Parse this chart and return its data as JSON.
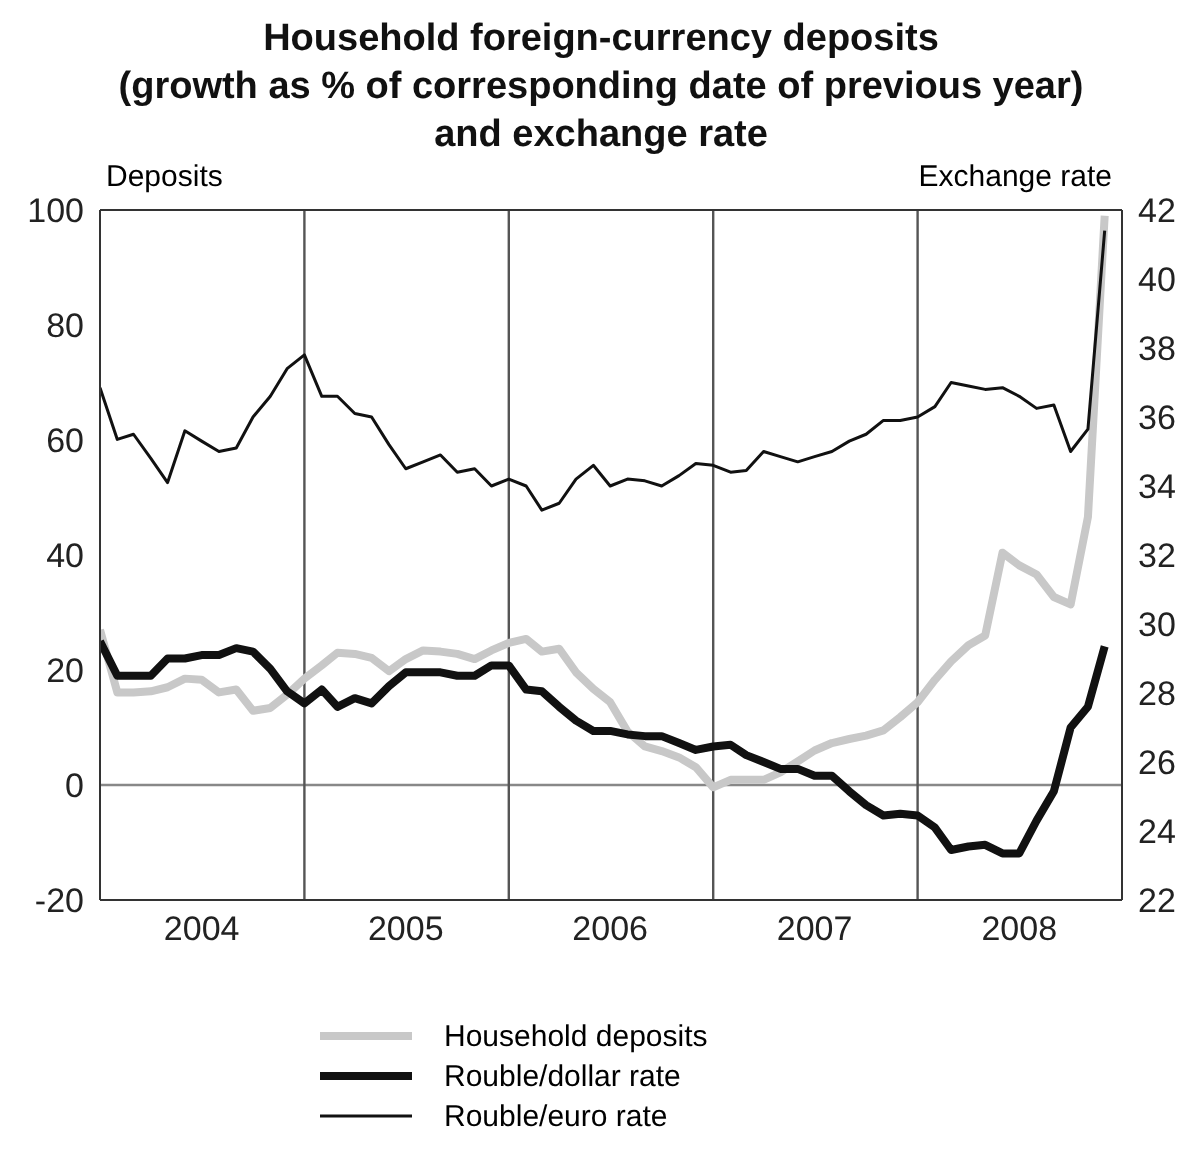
{
  "chart_data": {
    "type": "line",
    "title": "Household foreign-currency deposits\n(growth as % of corresponding date of previous year)\nand exchange rate",
    "ylabel": "Deposits",
    "y2label": "Exchange rate",
    "x": [
      "2004-01",
      "2004-02",
      "2004-03",
      "2004-04",
      "2004-05",
      "2004-06",
      "2004-07",
      "2004-08",
      "2004-09",
      "2004-10",
      "2004-11",
      "2004-12",
      "2005-01",
      "2005-02",
      "2005-03",
      "2005-04",
      "2005-05",
      "2005-06",
      "2005-07",
      "2005-08",
      "2005-09",
      "2005-10",
      "2005-11",
      "2005-12",
      "2006-01",
      "2006-02",
      "2006-03",
      "2006-04",
      "2006-05",
      "2006-06",
      "2006-07",
      "2006-08",
      "2006-09",
      "2006-10",
      "2006-11",
      "2006-12",
      "2007-01",
      "2007-02",
      "2007-03",
      "2007-04",
      "2007-05",
      "2007-06",
      "2007-07",
      "2007-08",
      "2007-09",
      "2007-10",
      "2007-11",
      "2007-12",
      "2008-01",
      "2008-02",
      "2008-03",
      "2008-04",
      "2008-05",
      "2008-06",
      "2008-07",
      "2008-08",
      "2008-09",
      "2008-10",
      "2008-11",
      "2008-12"
    ],
    "series": [
      {
        "name": "Household deposits",
        "color": "#c8c8c8",
        "values": [
          27,
          16.1,
          16.1,
          16.3,
          17,
          18.5,
          18.3,
          16.1,
          16.6,
          12.9,
          13.4,
          15.7,
          18.5,
          20.8,
          23,
          22.8,
          22.1,
          19.8,
          21.9,
          23.4,
          23.2,
          22.8,
          21.9,
          23.4,
          24.7,
          25.4,
          23.2,
          23.7,
          19.6,
          16.7,
          14.4,
          9.3,
          6.7,
          5.9,
          4.8,
          3.1,
          -0.4,
          0.9,
          0.9,
          0.9,
          2.2,
          4.1,
          6,
          7.3,
          8,
          8.6,
          9.5,
          11.8,
          14.4,
          18.3,
          21.5,
          24.3,
          26,
          40.4,
          38.2,
          36.6,
          32.7,
          31.4,
          46.6,
          99
        ]
      },
      {
        "name": "Rouble/dollar rate",
        "color": "#111111",
        "axis": "y2",
        "values": [
          29.5,
          28.5,
          28.5,
          28.5,
          29,
          29,
          29.1,
          29.1,
          29.3,
          29.2,
          28.7,
          28.05,
          27.7,
          28.1,
          27.6,
          27.85,
          27.7,
          28.2,
          28.6,
          28.6,
          28.6,
          28.5,
          28.5,
          28.8,
          28.8,
          28.1,
          28.05,
          27.6,
          27.2,
          26.9,
          26.9,
          26.8,
          26.75,
          26.75,
          26.55,
          26.35,
          26.45,
          26.5,
          26.2,
          26,
          25.8,
          25.8,
          25.6,
          25.6,
          25.15,
          24.75,
          24.45,
          24.5,
          24.45,
          24.1,
          23.45,
          23.55,
          23.6,
          23.35,
          23.35,
          24.3,
          25.15,
          27,
          27.6,
          29.35
        ]
      },
      {
        "name": "Rouble/euro rate",
        "color": "#111111",
        "axis": "y2",
        "values": [
          36.85,
          35.35,
          35.5,
          34.8,
          34.1,
          35.6,
          35.3,
          35,
          35.1,
          36,
          36.6,
          37.4,
          37.8,
          36.6,
          36.6,
          36.1,
          36,
          35.2,
          34.5,
          34.7,
          34.9,
          34.4,
          34.5,
          34,
          34.2,
          34,
          33.3,
          33.5,
          34.2,
          34.6,
          34,
          34.2,
          34.15,
          34,
          34.3,
          34.65,
          34.6,
          34.4,
          34.45,
          35,
          34.85,
          34.7,
          34.85,
          35,
          35.3,
          35.5,
          35.9,
          35.9,
          36,
          36.3,
          37,
          36.9,
          36.8,
          36.85,
          36.6,
          36.25,
          36.35,
          35,
          35.65,
          41.4
        ]
      }
    ],
    "xlim": [
      "2004-01",
      "2009-01"
    ],
    "xticks": [
      {
        "value": "2004-07",
        "label": "2004"
      },
      {
        "value": "2005-07",
        "label": "2005"
      },
      {
        "value": "2006-07",
        "label": "2006"
      },
      {
        "value": "2007-07",
        "label": "2007"
      },
      {
        "value": "2008-07",
        "label": "2008"
      }
    ],
    "ylim": [
      -20,
      100
    ],
    "yticks": [
      -20,
      0,
      20,
      40,
      60,
      80,
      100
    ],
    "y2lim": [
      22,
      42
    ],
    "y2ticks": [
      22,
      24,
      26,
      28,
      30,
      32,
      34,
      36,
      38,
      40,
      42
    ],
    "ref_lines": [
      {
        "axis": "y",
        "value": 0,
        "color": "#888888"
      },
      {
        "axis": "x",
        "value": "2005-01",
        "color": "#555555"
      },
      {
        "axis": "x",
        "value": "2006-01",
        "color": "#555555"
      },
      {
        "axis": "x",
        "value": "2007-01",
        "color": "#555555"
      },
      {
        "axis": "x",
        "value": "2008-01",
        "color": "#555555"
      }
    ],
    "grid": false,
    "legend": "bottom",
    "marker": "none",
    "line_style": "solid"
  }
}
